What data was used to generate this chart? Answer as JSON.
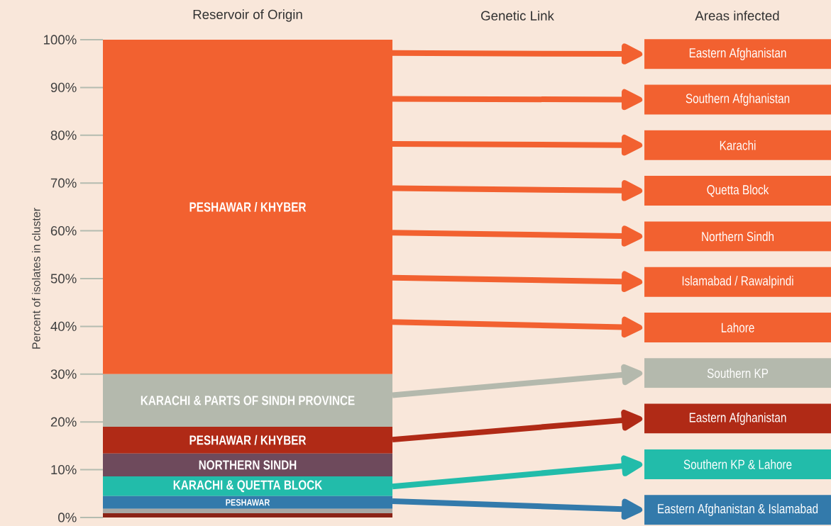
{
  "chart_data": {
    "type": "bar",
    "stacked": true,
    "title": "Reservoir of Origin",
    "ylabel": "Percent of isolates in cluster",
    "categories": [
      null
    ],
    "series": [
      {
        "color": "#8b2316",
        "values": [
          0.9
        ]
      },
      {
        "color": "#a8a8a4",
        "values": [
          0.9
        ]
      },
      {
        "name": "PESHAWAR",
        "color": "#337aab",
        "values": [
          2.7
        ]
      },
      {
        "name": "KARACHI & QUETTA BLOCK",
        "color": "#22bcaa",
        "values": [
          4.1
        ]
      },
      {
        "name": "NORTHERN SINDH",
        "color": "#6e4a5c",
        "values": [
          4.8
        ]
      },
      {
        "name": "PESHAWAR / KHYBER",
        "color": "#b02a16",
        "values": [
          5.6
        ]
      },
      {
        "name": "KARACHI & PARTS OF SINDH PROVINCE",
        "color": "#b4b9ad",
        "values": [
          11.0
        ]
      },
      {
        "name": "PESHAWAR / KHYBER",
        "color": "#f26130",
        "values": [
          70.0
        ]
      }
    ],
    "ylim": [
      0,
      100
    ],
    "yticks": [
      {
        "value": 0,
        "label": "0%"
      },
      {
        "value": 10,
        "label": "10%"
      },
      {
        "value": 20,
        "label": "20%"
      },
      {
        "value": 30,
        "label": "30%"
      },
      {
        "value": 40,
        "label": "40%"
      },
      {
        "value": 50,
        "label": "50%"
      },
      {
        "value": 60,
        "label": "60%"
      },
      {
        "value": 70,
        "label": "70%"
      },
      {
        "value": 80,
        "label": "80%"
      },
      {
        "value": 90,
        "label": "90%"
      },
      {
        "value": 100,
        "label": "100%"
      }
    ],
    "annotations": [
      "Genetic Link",
      "Areas infected",
      "Eastern Afghanistan",
      "Southern Afghanistan",
      "Karachi",
      "Quetta Block",
      "Northern Sindh",
      "Islamabad / Rawalpindi",
      "Lahore",
      "Southern KP",
      "Eastern Afghanistan",
      "Southern KP & Lahore",
      "Eastern Afghanistan & Islamabad"
    ]
  }
}
